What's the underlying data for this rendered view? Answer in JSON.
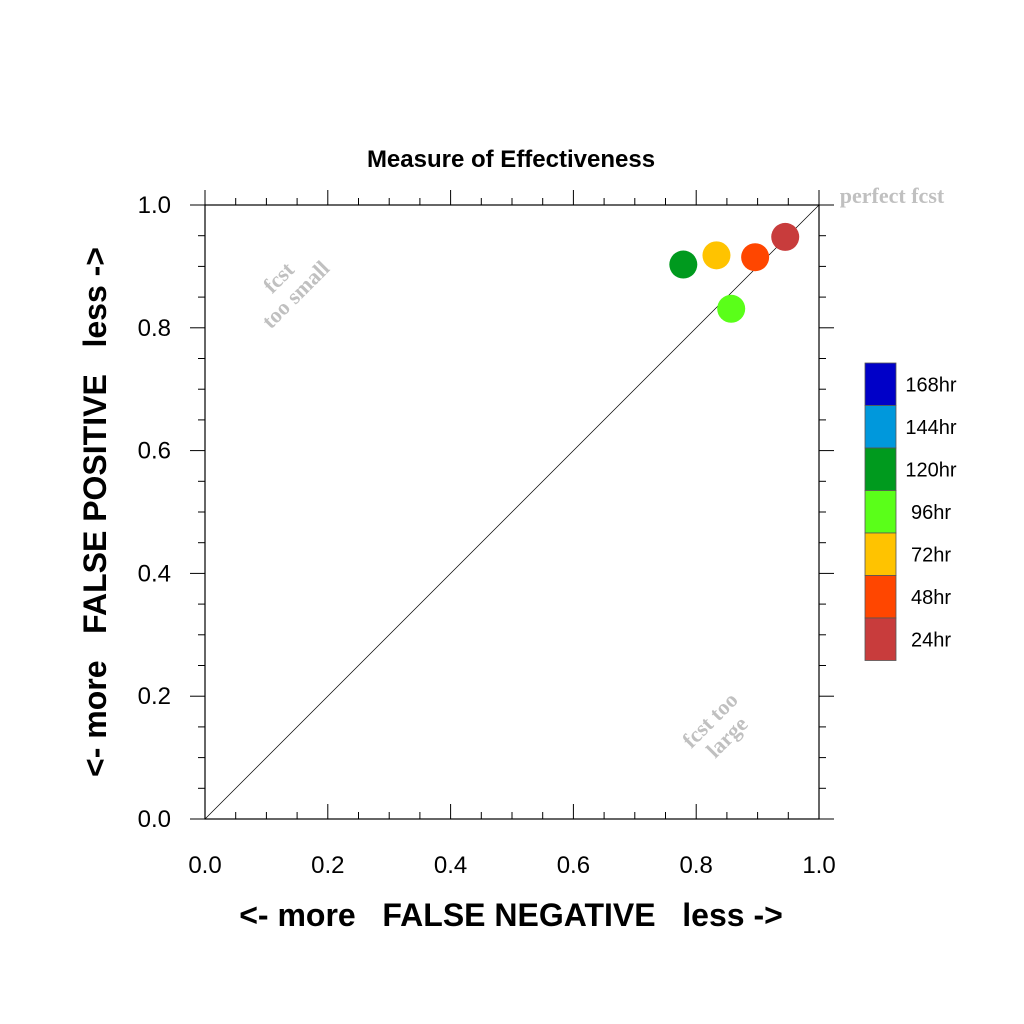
{
  "chart_data": {
    "type": "scatter",
    "title": "Measure of Effectiveness",
    "xlabel": "<- more   FALSE NEGATIVE   less ->",
    "ylabel": "<- more   FALSE POSITIVE   less ->",
    "xlim": [
      0,
      1
    ],
    "ylim": [
      0,
      1
    ],
    "x_ticks": [
      "0.0",
      "0.2",
      "0.4",
      "0.6",
      "0.8",
      "1.0"
    ],
    "y_ticks": [
      "0.0",
      "0.2",
      "0.4",
      "0.6",
      "0.8",
      "1.0"
    ],
    "grid": false,
    "diagonal_line": true,
    "annotations": {
      "perfect": "perfect fcst",
      "too_small": [
        "fcst",
        "too small"
      ],
      "too_large": [
        "fcst too",
        "large"
      ]
    },
    "legend": {
      "placement": "right",
      "entries": [
        {
          "label": "168hr",
          "color": "#0000c8"
        },
        {
          "label": "144hr",
          "color": "#0098dc"
        },
        {
          "label": "120hr",
          "color": "#009a1e"
        },
        {
          "label": "96hr",
          "color": "#5aff19"
        },
        {
          "label": "72hr",
          "color": "#ffc300"
        },
        {
          "label": "48hr",
          "color": "#ff4600"
        },
        {
          "label": "24hr",
          "color": "#c83c3c"
        }
      ]
    },
    "points": [
      {
        "label": "24hr",
        "x": 0.945,
        "y": 0.948,
        "color": "#c83c3c"
      },
      {
        "label": "48hr",
        "x": 0.896,
        "y": 0.915,
        "color": "#ff4600"
      },
      {
        "label": "72hr",
        "x": 0.833,
        "y": 0.918,
        "color": "#ffc300"
      },
      {
        "label": "96hr",
        "x": 0.857,
        "y": 0.831,
        "color": "#5aff19"
      },
      {
        "label": "120hr",
        "x": 0.779,
        "y": 0.903,
        "color": "#009a1e"
      }
    ]
  }
}
